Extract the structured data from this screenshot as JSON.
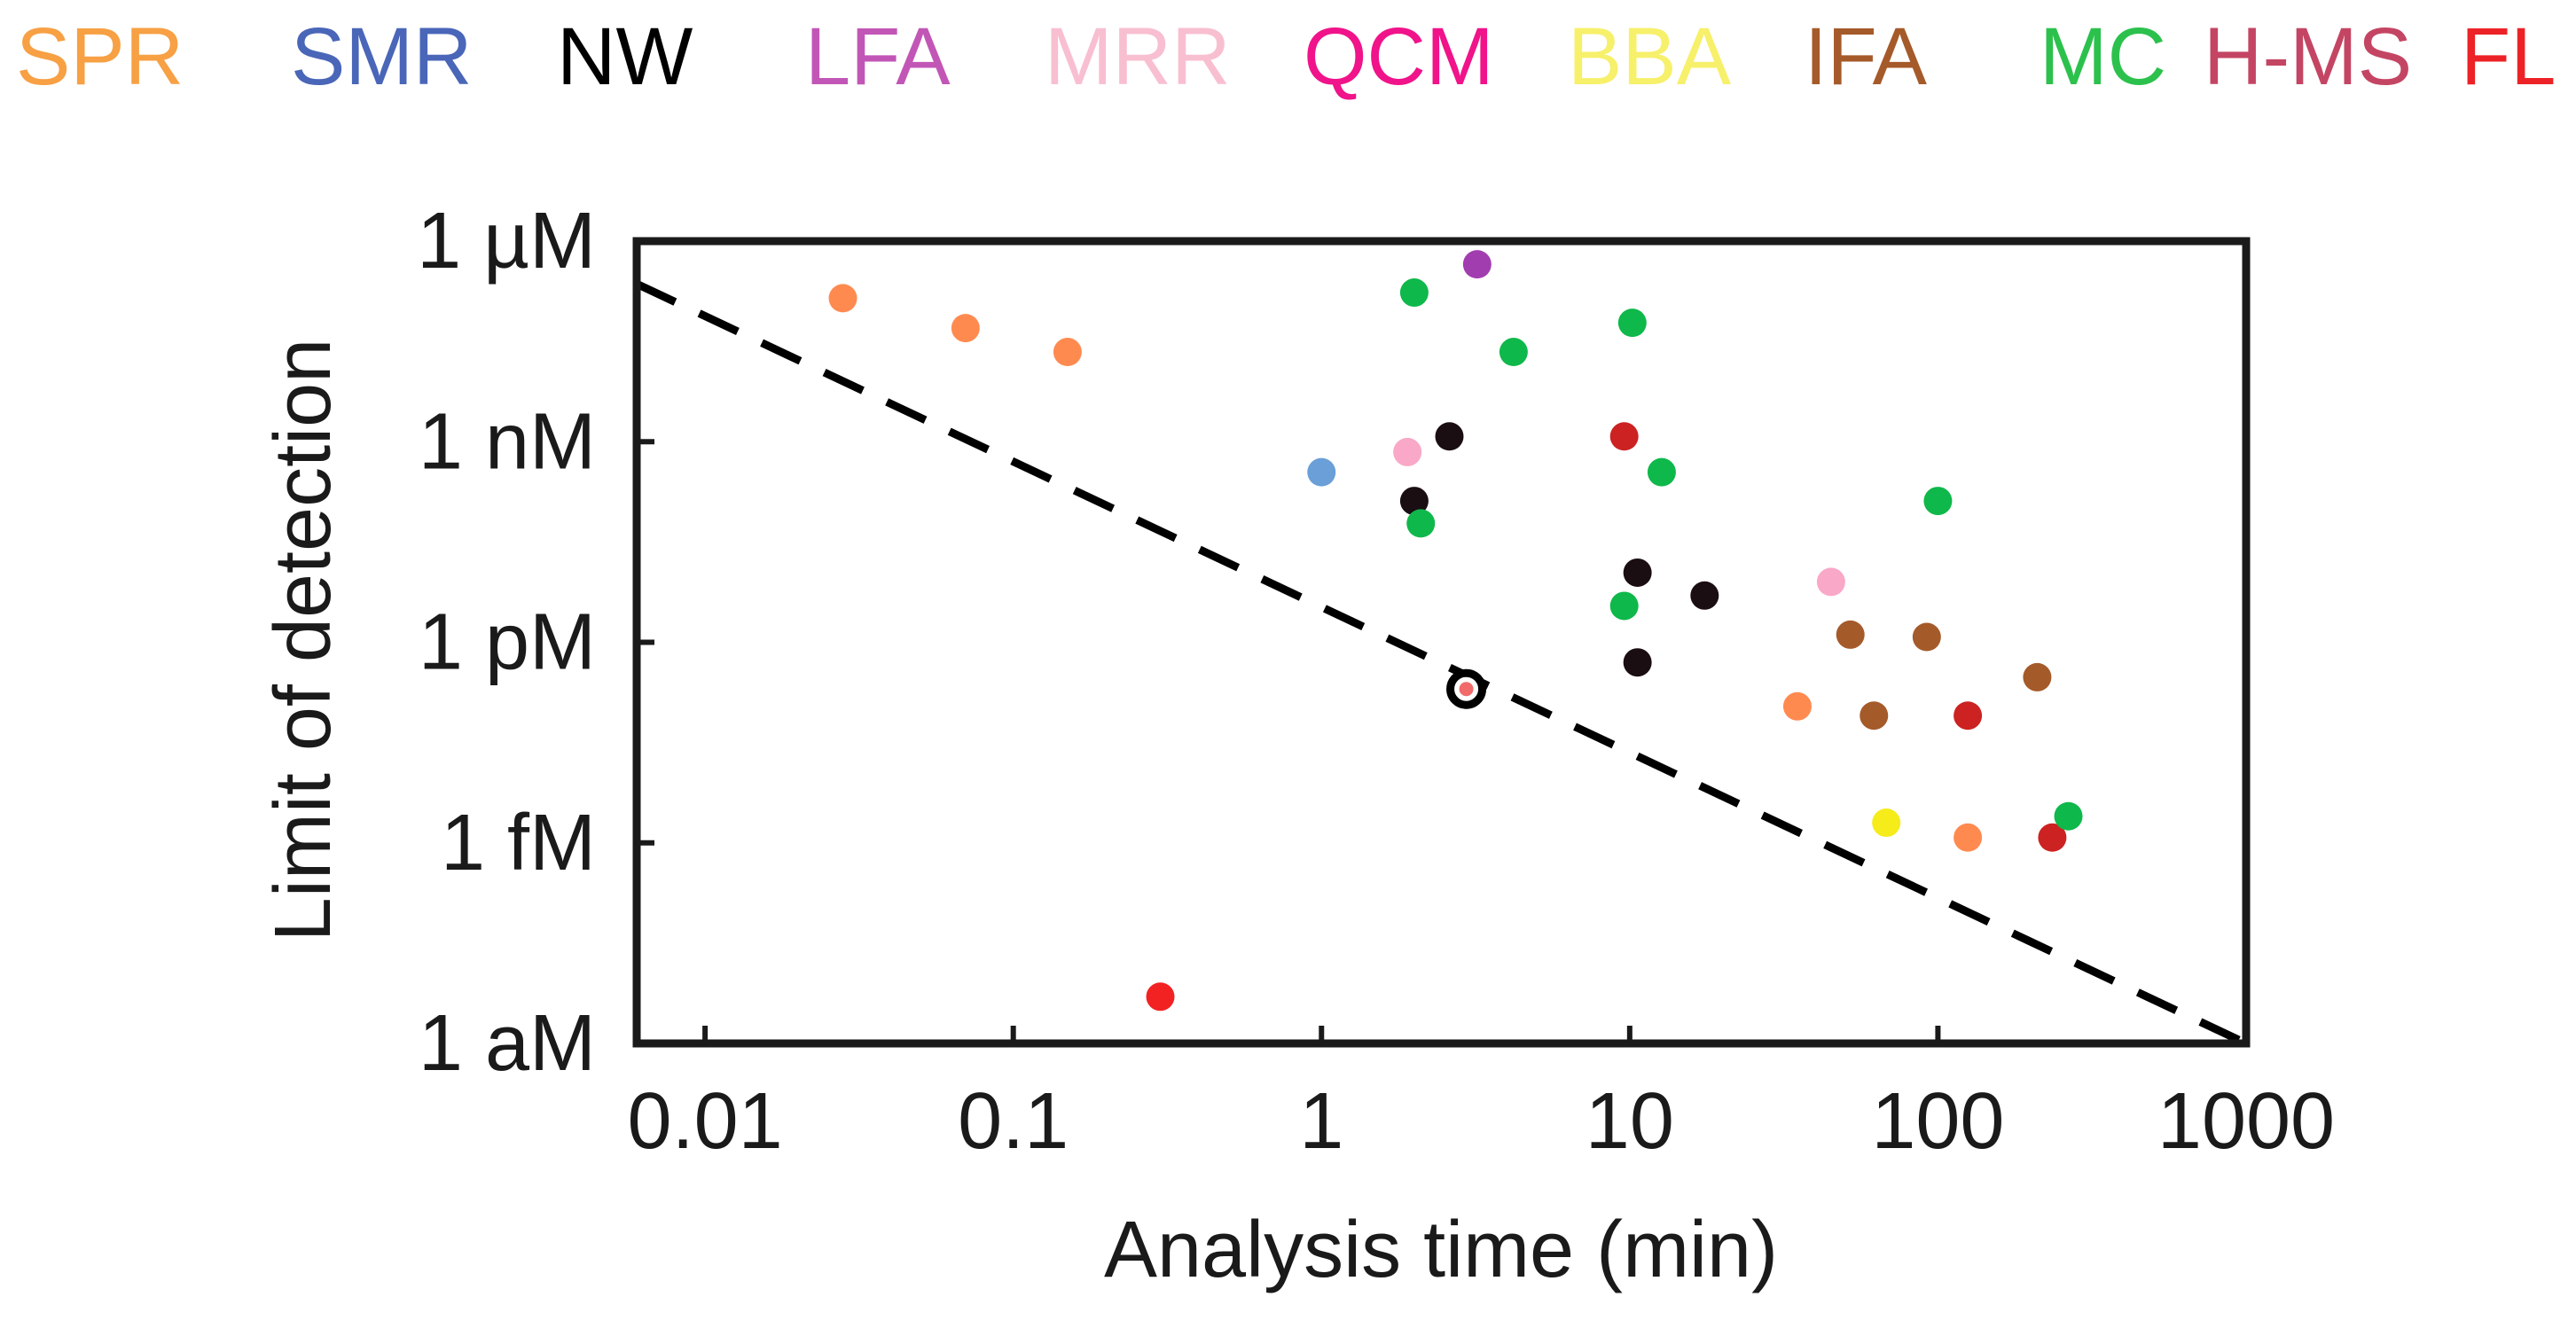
{
  "legend": [
    {
      "label": "SPR",
      "color": "#F7A044"
    },
    {
      "label": "SMR",
      "color": "#4A66B8"
    },
    {
      "label": "NW",
      "color": "#000000"
    },
    {
      "label": "LFA",
      "color": "#C256B6"
    },
    {
      "label": "MRR",
      "color": "#F8BFD0"
    },
    {
      "label": "QCM",
      "color": "#F0138A"
    },
    {
      "label": "BBA",
      "color": "#F7F06A"
    },
    {
      "label": "IFA",
      "color": "#A55A2A"
    },
    {
      "label": "MC",
      "color": "#2CC14C"
    },
    {
      "label": "H-MS",
      "color": "#C44563"
    },
    {
      "label": "FL",
      "color": "#EC2227"
    }
  ],
  "chart_data": {
    "type": "scatter",
    "xlabel": "Analysis time (min)",
    "ylabel": "Limit of detection",
    "xscale": "log",
    "yscale": "log",
    "xlim": [
      0.006,
      1000
    ],
    "ylim": [
      1e-18,
      1e-06
    ],
    "xticks": [
      {
        "value": 0.01,
        "label": "0.01"
      },
      {
        "value": 0.1,
        "label": "0.1"
      },
      {
        "value": 1,
        "label": "1"
      },
      {
        "value": 10,
        "label": "10"
      },
      {
        "value": 100,
        "label": "100"
      },
      {
        "value": 1000,
        "label": "1000"
      }
    ],
    "yticks": [
      {
        "value": 1e-18,
        "label": "1 aM"
      },
      {
        "value": 1e-15,
        "label": "1 fM"
      },
      {
        "value": 1e-12,
        "label": "1 pM"
      },
      {
        "value": 1e-09,
        "label": "1 nM"
      },
      {
        "value": 1e-06,
        "label": "1 µM"
      }
    ],
    "trend_line": {
      "style": "dashed",
      "color": "#000000",
      "x": [
        0.006,
        1000
      ],
      "y": [
        2.3e-07,
        1e-18
      ]
    },
    "points": [
      {
        "x": 0.028,
        "y": 1.4e-07,
        "color": "#FF8A50"
      },
      {
        "x": 0.07,
        "y": 5e-08,
        "color": "#FF8A50"
      },
      {
        "x": 0.15,
        "y": 2.2e-08,
        "color": "#FF8A50"
      },
      {
        "x": 1.0,
        "y": 3.5e-10,
        "color": "#6A9FD8"
      },
      {
        "x": 1.9,
        "y": 7e-10,
        "color": "#F9A8C8"
      },
      {
        "x": 2.0,
        "y": 1.7e-07,
        "color": "#0FB84A"
      },
      {
        "x": 3.2,
        "y": 4.5e-07,
        "color": "#A23DB0"
      },
      {
        "x": 2.6,
        "y": 1.2e-09,
        "color": "#1A0E12"
      },
      {
        "x": 2.0,
        "y": 1.3e-10,
        "color": "#1A0E12"
      },
      {
        "x": 2.1,
        "y": 6e-11,
        "color": "#0FB84A"
      },
      {
        "x": 4.2,
        "y": 2.2e-08,
        "color": "#0FB84A"
      },
      {
        "x": 2.95,
        "y": 2e-13,
        "color": "#F26B6B",
        "ring": "#000000"
      },
      {
        "x": 0.3,
        "y": 5e-18,
        "color": "#F22222"
      },
      {
        "x": 9.6,
        "y": 1.2e-09,
        "color": "#CC2222"
      },
      {
        "x": 10.2,
        "y": 6e-08,
        "color": "#0FB84A"
      },
      {
        "x": 12.7,
        "y": 3.5e-10,
        "color": "#0FB84A"
      },
      {
        "x": 10.6,
        "y": 1.1e-11,
        "color": "#1A0E12"
      },
      {
        "x": 17.5,
        "y": 5e-12,
        "color": "#1A0E12"
      },
      {
        "x": 9.6,
        "y": 3.5e-12,
        "color": "#0FB84A"
      },
      {
        "x": 10.6,
        "y": 5e-13,
        "color": "#1A0E12"
      },
      {
        "x": 45,
        "y": 8e-12,
        "color": "#F9A8C8"
      },
      {
        "x": 52,
        "y": 1.3e-12,
        "color": "#A55A2A"
      },
      {
        "x": 62,
        "y": 8e-14,
        "color": "#A55A2A"
      },
      {
        "x": 35,
        "y": 1.1e-13,
        "color": "#FF8A50"
      },
      {
        "x": 92,
        "y": 1.2e-12,
        "color": "#A55A2A"
      },
      {
        "x": 125,
        "y": 8e-14,
        "color": "#CC2222"
      },
      {
        "x": 210,
        "y": 3e-13,
        "color": "#A55A2A"
      },
      {
        "x": 100,
        "y": 1.3e-10,
        "color": "#0FB84A"
      },
      {
        "x": 68,
        "y": 2e-15,
        "color": "#F5EC1A"
      },
      {
        "x": 125,
        "y": 1.2e-15,
        "color": "#FF8A50"
      },
      {
        "x": 235,
        "y": 1.2e-15,
        "color": "#CC2222"
      },
      {
        "x": 265,
        "y": 2.5e-15,
        "color": "#0FB84A"
      }
    ]
  }
}
